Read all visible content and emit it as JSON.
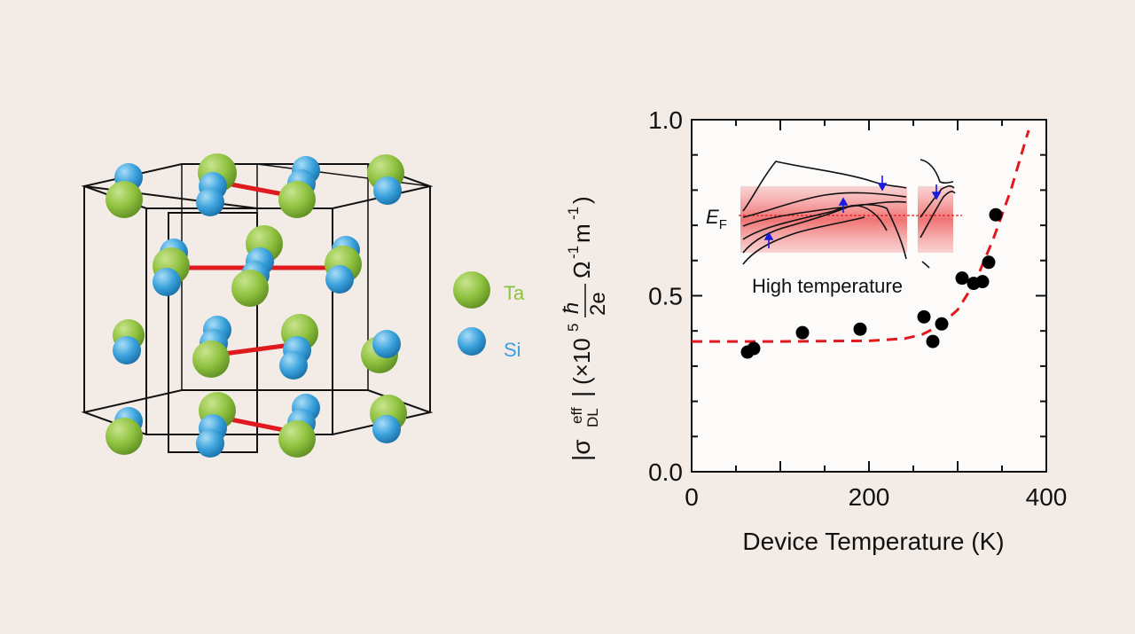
{
  "legend": {
    "ta_label": "Ta",
    "si_label": "Si",
    "ta_color": "#8fc23f",
    "si_color": "#3aa2dc"
  },
  "bond_color": "#e0191e",
  "chart_data": {
    "type": "scatter",
    "title": "",
    "xlabel": "Device Temperature (K)",
    "ylabel": "|σ_DL^eff| (×10^5 ħ/2e Ω^-1 m^-1)",
    "xlim": [
      0,
      400
    ],
    "ylim": [
      0.0,
      1.0
    ],
    "xticks": [
      "0",
      "200",
      "400"
    ],
    "yticks": [
      "0.0",
      "0.5",
      "1.0"
    ],
    "series": [
      {
        "style": "points",
        "color": "#000000",
        "x": [
          63,
          70,
          125,
          190,
          262,
          272,
          282,
          305,
          318,
          328,
          335,
          343
        ],
        "y": [
          0.34,
          0.35,
          0.395,
          0.405,
          0.44,
          0.37,
          0.42,
          0.55,
          0.535,
          0.54,
          0.595,
          0.73
        ]
      },
      {
        "style": "dashed-fit",
        "color": "#e0191e",
        "x": [
          0,
          100,
          200,
          240,
          260,
          280,
          300,
          320,
          340,
          360,
          380
        ],
        "y": [
          0.37,
          0.37,
          0.372,
          0.378,
          0.39,
          0.415,
          0.46,
          0.54,
          0.66,
          0.8,
          0.97
        ]
      }
    ],
    "inset": {
      "label": "High temperature",
      "fermi_label": "E",
      "fermi_sub": "F"
    },
    "grid": false
  }
}
